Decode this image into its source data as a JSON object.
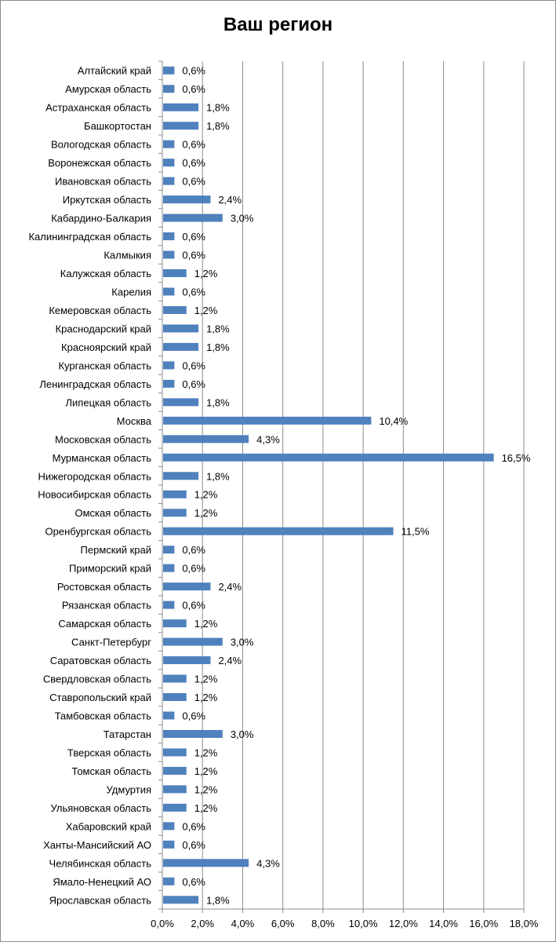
{
  "chart_data": {
    "type": "bar",
    "orientation": "horizontal",
    "title": "Ваш регион",
    "xlabel": "",
    "ylabel": "",
    "xlim": [
      0,
      18
    ],
    "tick_labels": [
      "0,0%",
      "2,0%",
      "4,0%",
      "6,0%",
      "8,0%",
      "10,0%",
      "12,0%",
      "14,0%",
      "16,0%",
      "18,0%"
    ],
    "grid": "vertical",
    "legend": "none",
    "bar_color": "#4f81bd",
    "categories": [
      "Алтайский край",
      "Амурская область",
      "Астраханская область",
      "Башкортостан",
      "Вологодская область",
      "Воронежская область",
      "Ивановская область",
      "Иркутская область",
      "Кабардино-Балкария",
      "Калининградская область",
      "Калмыкия",
      "Калужская область",
      "Карелия",
      "Кемеровская область",
      "Краснодарский край",
      "Красноярский край",
      "Курганская область",
      "Ленинградская область",
      "Липецкая область",
      "Москва",
      "Московская область",
      "Мурманская область",
      "Нижегородская область",
      "Новосибирская область",
      "Омская область",
      "Оренбургская область",
      "Пермский край",
      "Приморский край",
      "Ростовская область",
      "Рязанская область",
      "Самарская область",
      "Санкт-Петербург",
      "Саратовская область",
      "Свердловская область",
      "Ставропольский край",
      "Тамбовская область",
      "Татарстан",
      "Тверская область",
      "Томская область",
      "Удмуртия",
      "Ульяновская область",
      "Хабаровский край",
      "Ханты-Мансийский АО",
      "Челябинская область",
      "Ямало-Ненецкий АО",
      "Ярославская область"
    ],
    "values": [
      0.6,
      0.6,
      1.8,
      1.8,
      0.6,
      0.6,
      0.6,
      2.4,
      3.0,
      0.6,
      0.6,
      1.2,
      0.6,
      1.2,
      1.8,
      1.8,
      0.6,
      0.6,
      1.8,
      10.4,
      4.3,
      16.5,
      1.8,
      1.2,
      1.2,
      11.5,
      0.6,
      0.6,
      2.4,
      0.6,
      1.2,
      3.0,
      2.4,
      1.2,
      1.2,
      0.6,
      3.0,
      1.2,
      1.2,
      1.2,
      1.2,
      0.6,
      0.6,
      4.3,
      0.6,
      1.8
    ],
    "value_labels": [
      "0,6%",
      "0,6%",
      "1,8%",
      "1,8%",
      "0,6%",
      "0,6%",
      "0,6%",
      "2,4%",
      "3,0%",
      "0,6%",
      "0,6%",
      "1,2%",
      "0,6%",
      "1,2%",
      "1,8%",
      "1,8%",
      "0,6%",
      "0,6%",
      "1,8%",
      "10,4%",
      "4,3%",
      "16,5%",
      "1,8%",
      "1,2%",
      "1,2%",
      "11,5%",
      "0,6%",
      "0,6%",
      "2,4%",
      "0,6%",
      "1,2%",
      "3,0%",
      "2,4%",
      "1,2%",
      "1,2%",
      "0,6%",
      "3,0%",
      "1,2%",
      "1,2%",
      "1,2%",
      "1,2%",
      "0,6%",
      "0,6%",
      "4,3%",
      "0,6%",
      "1,8%"
    ]
  }
}
